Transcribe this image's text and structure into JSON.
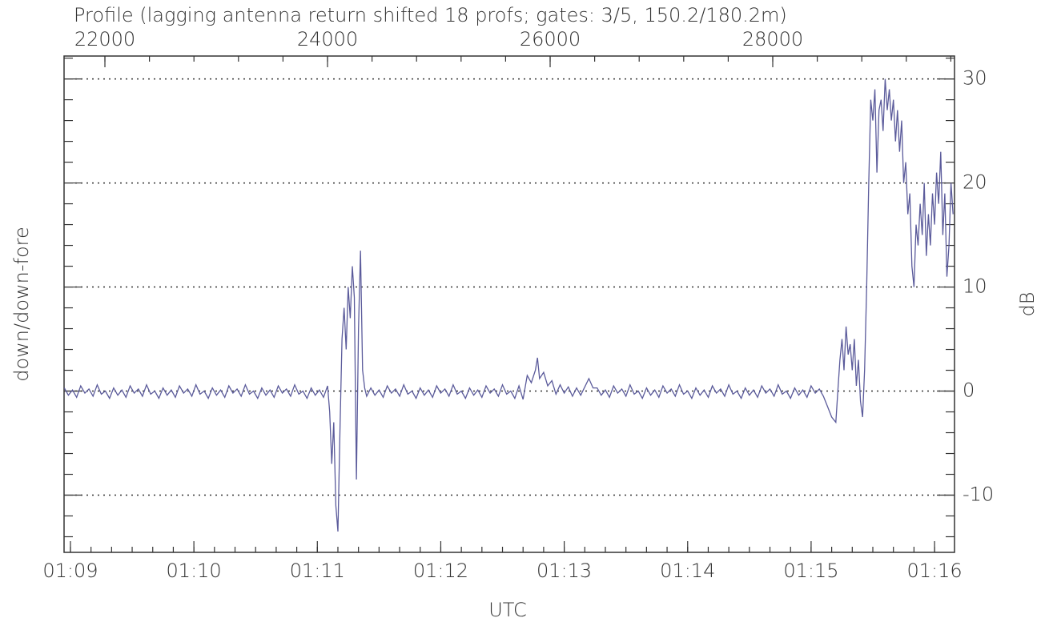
{
  "chart_data": {
    "type": "line",
    "title": "Profile (lagging antenna return shifted 18 profs; gates: 3/5, 150.2/180.2m)",
    "xlabel": "UTC",
    "ylabel": "down/down-fore",
    "ylabel_right": "dB",
    "color": "#5b5b9b",
    "grid": true,
    "xlim": [
      4136.9,
      4569.7
    ],
    "xticks": [
      {
        "value": 4140,
        "label": "01:09"
      },
      {
        "value": 4200,
        "label": "01:10"
      },
      {
        "value": 4260,
        "label": "01:11"
      },
      {
        "value": 4320,
        "label": "01:12"
      },
      {
        "value": 4380,
        "label": "01:13"
      },
      {
        "value": 4440,
        "label": "01:14"
      },
      {
        "value": 4500,
        "label": "01:15"
      },
      {
        "value": 4560,
        "label": "01:16"
      }
    ],
    "x2lim": [
      21633,
      29633
    ],
    "x2ticks": [
      22000,
      24000,
      26000,
      28000
    ],
    "ylim": [
      -15.5,
      32.2
    ],
    "yticks": [
      -10,
      0,
      10,
      20,
      30
    ],
    "x": [
      4137,
      4139,
      4141,
      4143,
      4145,
      4147,
      4149,
      4151,
      4153,
      4155,
      4157,
      4159,
      4161,
      4163,
      4165,
      4167,
      4169,
      4171,
      4173,
      4175,
      4177,
      4179,
      4181,
      4183,
      4185,
      4187,
      4189,
      4191,
      4193,
      4195,
      4197,
      4199,
      4201,
      4203,
      4205,
      4207,
      4209,
      4211,
      4213,
      4215,
      4217,
      4219,
      4221,
      4223,
      4225,
      4227,
      4229,
      4231,
      4233,
      4235,
      4237,
      4239,
      4241,
      4243,
      4245,
      4247,
      4249,
      4251,
      4253,
      4255,
      4257,
      4259,
      4261,
      4263,
      4265,
      4266,
      4267,
      4268,
      4269,
      4270,
      4271,
      4272,
      4273,
      4274,
      4275,
      4276,
      4277,
      4278,
      4279,
      4280,
      4281,
      4282,
      4283,
      4284,
      4286,
      4288,
      4290,
      4292,
      4294,
      4296,
      4298,
      4300,
      4302,
      4304,
      4306,
      4308,
      4310,
      4312,
      4314,
      4316,
      4318,
      4320,
      4322,
      4324,
      4326,
      4328,
      4330,
      4332,
      4334,
      4336,
      4338,
      4340,
      4342,
      4344,
      4346,
      4348,
      4350,
      4352,
      4354,
      4356,
      4358,
      4360,
      4362,
      4364,
      4366,
      4367,
      4368,
      4370,
      4372,
      4374,
      4376,
      4378,
      4380,
      4382,
      4384,
      4386,
      4388,
      4390,
      4392,
      4394,
      4396,
      4398,
      4400,
      4402,
      4404,
      4406,
      4408,
      4410,
      4412,
      4414,
      4416,
      4418,
      4420,
      4422,
      4424,
      4426,
      4428,
      4430,
      4432,
      4434,
      4436,
      4438,
      4440,
      4442,
      4444,
      4446,
      4448,
      4450,
      4452,
      4454,
      4456,
      4458,
      4460,
      4462,
      4464,
      4466,
      4468,
      4470,
      4472,
      4474,
      4476,
      4478,
      4480,
      4482,
      4484,
      4486,
      4488,
      4490,
      4492,
      4494,
      4496,
      4498,
      4500,
      4502,
      4504,
      4506,
      4508,
      4510,
      4512,
      4513,
      4514,
      4515,
      4516,
      4517,
      4518,
      4519,
      4520,
      4521,
      4522,
      4523,
      4524,
      4525,
      4526,
      4527,
      4528,
      4529,
      4530,
      4531,
      4532,
      4533,
      4534,
      4535,
      4536,
      4537,
      4538,
      4539,
      4540,
      4541,
      4542,
      4543,
      4544,
      4545,
      4546,
      4547,
      4548,
      4549,
      4550,
      4551,
      4552,
      4553,
      4554,
      4555,
      4556,
      4557,
      4558,
      4559,
      4560,
      4561,
      4562,
      4563,
      4564,
      4565,
      4566,
      4567,
      4568,
      4569
    ],
    "values": [
      0.3,
      -0.4,
      0.1,
      -0.6,
      0.5,
      -0.2,
      0.2,
      -0.5,
      0.6,
      -0.3,
      0.0,
      -0.7,
      0.3,
      -0.4,
      0.1,
      -0.6,
      0.5,
      -0.2,
      0.2,
      -0.5,
      0.6,
      -0.3,
      0.0,
      -0.7,
      0.3,
      -0.4,
      0.1,
      -0.6,
      0.5,
      -0.2,
      0.2,
      -0.5,
      0.6,
      -0.3,
      0.0,
      -0.7,
      0.3,
      -0.4,
      0.1,
      -0.6,
      0.5,
      -0.2,
      0.2,
      -0.5,
      0.6,
      -0.3,
      0.0,
      -0.7,
      0.3,
      -0.4,
      0.1,
      -0.6,
      0.5,
      -0.2,
      0.2,
      -0.5,
      0.6,
      -0.3,
      0.0,
      -0.7,
      0.3,
      -0.4,
      0.1,
      -0.6,
      0.5,
      -2,
      -7,
      -3,
      -11,
      -13.5,
      -4,
      5,
      8,
      4,
      10,
      7,
      12,
      9,
      -8.5,
      6,
      13.5,
      2,
      0.3,
      -0.5,
      0.3,
      -0.4,
      0.1,
      -0.6,
      0.5,
      -0.2,
      0.2,
      -0.5,
      0.6,
      -0.3,
      0.0,
      -0.7,
      0.3,
      -0.4,
      0.1,
      -0.6,
      0.5,
      -0.2,
      0.2,
      -0.5,
      0.6,
      -0.3,
      0.0,
      -0.7,
      0.3,
      -0.4,
      0.1,
      -0.6,
      0.5,
      -0.2,
      0.2,
      -0.5,
      0.6,
      -0.3,
      0.0,
      -0.7,
      0.5,
      -0.8,
      1.5,
      0.8,
      2,
      3.2,
      1.2,
      1.8,
      0.5,
      1,
      -0.3,
      0.6,
      -0.2,
      0.4,
      -0.5,
      0.3,
      -0.4,
      0.4,
      1.2,
      0.3,
      0.3,
      -0.4,
      0.1,
      -0.6,
      0.5,
      -0.2,
      0.2,
      -0.5,
      0.6,
      -0.3,
      0.0,
      -0.7,
      0.3,
      -0.4,
      0.1,
      -0.6,
      0.5,
      -0.2,
      0.2,
      -0.5,
      0.6,
      -0.3,
      0.0,
      -0.7,
      0.3,
      -0.4,
      0.1,
      -0.6,
      0.5,
      -0.2,
      0.2,
      -0.5,
      0.6,
      -0.3,
      0.0,
      -0.7,
      0.3,
      -0.4,
      0.1,
      -0.6,
      0.5,
      -0.2,
      0.2,
      -0.5,
      0.6,
      -0.3,
      0.0,
      -0.7,
      0.3,
      -0.4,
      0.1,
      -0.6,
      0.5,
      -0.2,
      0.2,
      -0.5,
      -1.5,
      -2.5,
      -3,
      0,
      3,
      5,
      2,
      6.2,
      3.5,
      4.5,
      2,
      5,
      0.5,
      3,
      -1,
      -2.5,
      2,
      10,
      20,
      28,
      26,
      29,
      21,
      27,
      28,
      25,
      30,
      27,
      29,
      26,
      28,
      24,
      27,
      23,
      26,
      20,
      22,
      17,
      19,
      12,
      10,
      16,
      14,
      18,
      15,
      20,
      13,
      17,
      14,
      19,
      16,
      21,
      18,
      23,
      15,
      19,
      11,
      14,
      20,
      17
    ]
  }
}
